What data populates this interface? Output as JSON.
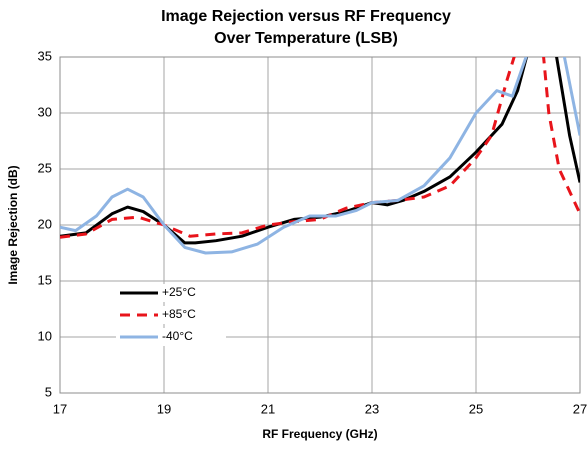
{
  "chart_data": {
    "type": "line",
    "title": [
      "Image Rejection versus RF Frequency",
      "Over Temperature (LSB)"
    ],
    "xlabel": "RF Frequency (GHz)",
    "ylabel": "Image Rejection (dB)",
    "xlim": [
      17,
      27
    ],
    "xticks": [
      17,
      19,
      21,
      23,
      25,
      27
    ],
    "ylim": [
      5,
      35
    ],
    "yticks": [
      5,
      10,
      15,
      20,
      25,
      30,
      35
    ],
    "grid": true,
    "legend": "lower left",
    "series": [
      {
        "name": "+25°C",
        "color": "#000000",
        "dash": "solid",
        "x": [
          17,
          17.5,
          18,
          18.3,
          18.6,
          19,
          19.4,
          19.6,
          20,
          20.5,
          21,
          21.5,
          22,
          22.5,
          23,
          23.3,
          23.6,
          24,
          24.5,
          25,
          25.5,
          25.8,
          26.0,
          26.2,
          26.45,
          26.55,
          26.8,
          27
        ],
        "values": [
          19.0,
          19.3,
          21.0,
          21.6,
          21.2,
          20.0,
          18.4,
          18.4,
          18.6,
          19.0,
          19.8,
          20.5,
          20.7,
          21.2,
          22.0,
          21.8,
          22.2,
          23.0,
          24.3,
          26.5,
          29.0,
          32.0,
          35.5,
          38,
          38,
          35.0,
          28.0,
          23.8
        ]
      },
      {
        "name": "+85°C",
        "color": "#e8141b",
        "dash": "dashed",
        "x": [
          17,
          17.5,
          18,
          18.5,
          19,
          19.5,
          20,
          20.5,
          21,
          21.5,
          22,
          22.5,
          23,
          23.5,
          24,
          24.5,
          25,
          25.3,
          25.6,
          25.8,
          26.0,
          26.2,
          26.3,
          26.4,
          26.6,
          27
        ],
        "values": [
          18.9,
          19.2,
          20.5,
          20.7,
          20.0,
          19.0,
          19.2,
          19.3,
          20.0,
          20.3,
          20.5,
          21.5,
          22.0,
          22.2,
          22.5,
          23.5,
          26.0,
          28.0,
          33.0,
          36.0,
          38,
          38,
          35.0,
          30.0,
          25.0,
          21.0
        ]
      },
      {
        "name": "-40°C",
        "color": "#8eb4e3",
        "dash": "solid",
        "x": [
          17,
          17.3,
          17.7,
          18,
          18.3,
          18.6,
          19,
          19.4,
          19.8,
          20.3,
          20.8,
          21.3,
          21.8,
          22.3,
          22.7,
          23,
          23.5,
          24,
          24.5,
          25,
          25.4,
          25.7,
          26.0,
          26.2,
          26.6,
          26.7,
          27
        ],
        "values": [
          19.8,
          19.5,
          20.8,
          22.5,
          23.2,
          22.5,
          20.0,
          18.0,
          17.5,
          17.6,
          18.3,
          19.8,
          20.8,
          20.8,
          21.3,
          22.0,
          22.2,
          23.5,
          26.0,
          30.0,
          32.0,
          31.5,
          35.5,
          38,
          38,
          35.0,
          28.0
        ]
      }
    ]
  }
}
